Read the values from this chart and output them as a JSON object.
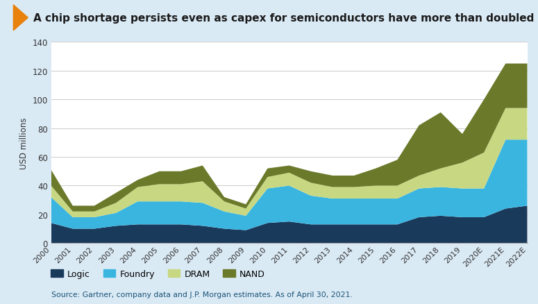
{
  "title": "A chip shortage persists even as capex for semiconductors have more than doubled industry wide",
  "ylabel": "USD millions",
  "source_text": "Source: Gartner, company data and J.P. Morgan estimates. As of April 30, 2021.",
  "years": [
    "2000",
    "2001",
    "2002",
    "2003",
    "2004",
    "2005",
    "2006",
    "2007",
    "2008",
    "2009",
    "2010",
    "2011",
    "2012",
    "2013",
    "2014",
    "2015",
    "2016",
    "2017",
    "2018",
    "2019",
    "2020E",
    "2021E",
    "2022E"
  ],
  "logic": [
    14,
    10,
    10,
    12,
    13,
    13,
    13,
    12,
    10,
    9,
    14,
    15,
    13,
    13,
    13,
    13,
    13,
    18,
    19,
    18,
    18,
    24,
    26
  ],
  "foundry": [
    18,
    8,
    8,
    9,
    16,
    16,
    16,
    16,
    12,
    10,
    24,
    25,
    20,
    18,
    18,
    18,
    18,
    20,
    20,
    20,
    20,
    48,
    46
  ],
  "dram": [
    8,
    4,
    4,
    7,
    10,
    12,
    12,
    15,
    7,
    5,
    8,
    9,
    9,
    8,
    8,
    9,
    9,
    9,
    13,
    18,
    25,
    22,
    22
  ],
  "nand": [
    11,
    4,
    4,
    7,
    5,
    9,
    9,
    11,
    3,
    3,
    6,
    5,
    8,
    8,
    8,
    12,
    18,
    35,
    39,
    20,
    37,
    31,
    31
  ],
  "colors": {
    "logic": "#1a3a5c",
    "foundry": "#3ab5e0",
    "dram": "#c8d882",
    "nand": "#6b7a2a"
  },
  "ylim": [
    0,
    140
  ],
  "yticks": [
    0,
    20,
    40,
    60,
    80,
    100,
    120,
    140
  ],
  "background_color": "#daeaf5",
  "plot_bg_color": "#ffffff",
  "title_color": "#1a1a1a",
  "source_color": "#1a5276",
  "title_fontsize": 11,
  "legend_labels": [
    "Logic",
    "Foundry",
    "DRAM",
    "NAND"
  ],
  "arrow_color": "#e8820c"
}
